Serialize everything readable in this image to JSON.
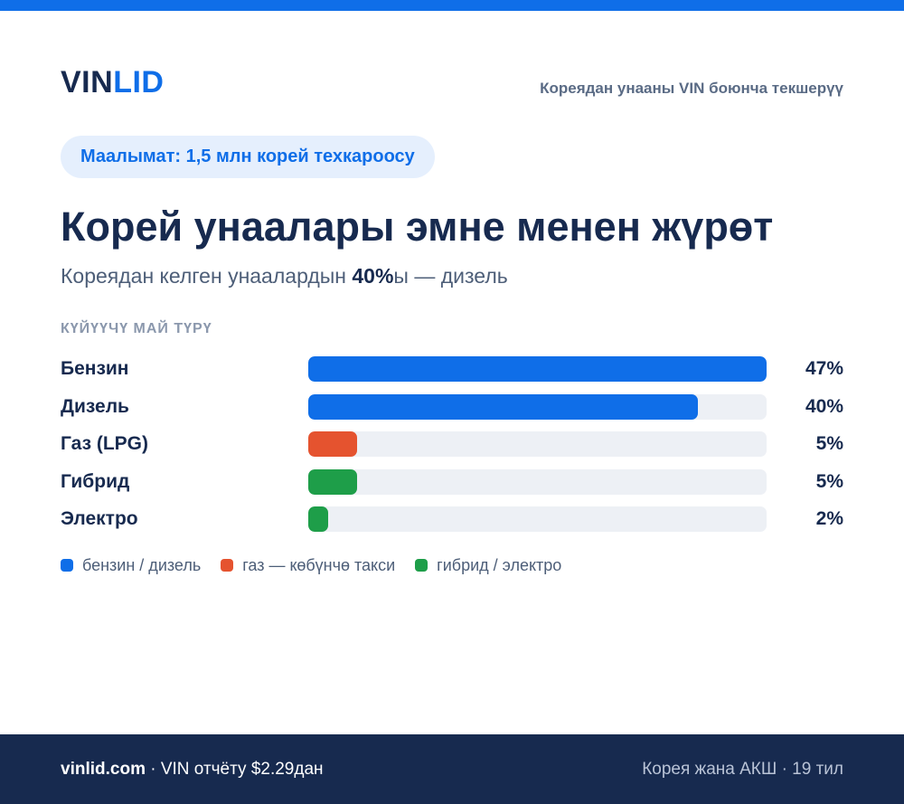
{
  "brand": {
    "logo_part1": "VIN",
    "logo_part2": "LID",
    "tagline": "Кореядан унааны VIN боюнча текшерүү"
  },
  "pill": {
    "text": "Маалымат: 1,5 млн корей техкароосу"
  },
  "headline": "Корей унаалары эмне менен жүрөт",
  "subline": {
    "prefix": "Кореядан келген унаалардын ",
    "highlight": "40%",
    "suffix": "ы — дизель"
  },
  "colors": {
    "accent": "#0f6ee8",
    "gas": "#e5532f",
    "hybrid": "#1e9e49",
    "navy": "#172a4f",
    "track": "#edf0f5"
  },
  "chart_data": {
    "type": "bar",
    "title": "КҮЙҮҮЧҮ МАЙ ТҮРҮ",
    "orientation": "horizontal",
    "categories": [
      "Бензин",
      "Дизель",
      "Газ (LPG)",
      "Гибрид",
      "Электро"
    ],
    "values": [
      47,
      40,
      5,
      5,
      2
    ],
    "value_labels": [
      "47%",
      "40%",
      "5%",
      "5%",
      "2%"
    ],
    "unit": "%",
    "bar_colors": [
      "#0f6ee8",
      "#0f6ee8",
      "#e5532f",
      "#1e9e49",
      "#1e9e49"
    ],
    "xlim": [
      0,
      47
    ],
    "legend": [
      {
        "label": "бензин / дизель",
        "color": "#0f6ee8"
      },
      {
        "label": "газ — көбүнчө такси",
        "color": "#e5532f"
      },
      {
        "label": "гибрид / электро",
        "color": "#1e9e49"
      }
    ]
  },
  "footer": {
    "site": "vinlid.com",
    "offer": " · VIN отчёту $2.29дан",
    "right": "Корея жана АКШ · 19 тил"
  }
}
